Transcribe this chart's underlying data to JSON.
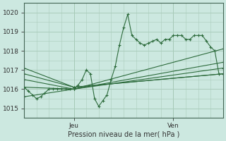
{
  "bg_color": "#cce8e0",
  "grid_color": "#aaccbb",
  "line_color": "#2d6b3c",
  "title": "Pression niveau de la mer( hPa )",
  "ylabel_ticks": [
    1015,
    1016,
    1017,
    1018,
    1019,
    1020
  ],
  "ylim": [
    1014.6,
    1020.4
  ],
  "xlim": [
    0,
    48
  ],
  "xtick_positions": [
    12,
    36
  ],
  "xtick_labels": [
    "Jeu",
    "Ven"
  ],
  "series0_x": [
    0,
    1,
    2,
    3,
    4,
    5,
    6,
    7,
    8,
    9,
    10,
    11,
    12,
    13,
    14,
    15,
    16,
    17,
    18,
    19,
    20,
    21,
    22,
    23,
    24,
    25,
    26,
    27,
    28,
    29,
    30,
    31,
    32,
    33,
    34,
    35,
    36,
    37,
    38,
    39,
    40,
    41,
    42,
    43,
    44,
    45,
    46,
    47
  ],
  "series0_y": [
    1016.1,
    1015.9,
    1015.7,
    1015.5,
    1015.6,
    1015.8,
    1016.0,
    1016.0,
    1016.0,
    1016.0,
    1016.0,
    1016.0,
    1016.0,
    1016.2,
    1016.5,
    1017.0,
    1016.8,
    1015.5,
    1015.1,
    1015.4,
    1015.7,
    1016.5,
    1017.2,
    1018.3,
    1019.2,
    1019.9,
    1018.8,
    1018.6,
    1018.4,
    1018.3,
    1018.4,
    1018.5,
    1018.6,
    1018.4,
    1018.6,
    1018.6,
    1018.8,
    1018.8,
    1018.8,
    1018.6,
    1018.6,
    1018.8,
    1018.8,
    1018.8,
    1018.5,
    1018.2,
    1018.0,
    1016.8
  ],
  "straight_lines": [
    {
      "x": [
        0,
        12,
        48
      ],
      "y": [
        1016.5,
        1016.0,
        1017.1
      ]
    },
    {
      "x": [
        0,
        12,
        48
      ],
      "y": [
        1016.1,
        1016.0,
        1018.1
      ]
    },
    {
      "x": [
        0,
        12,
        48
      ],
      "y": [
        1015.6,
        1016.0,
        1017.4
      ]
    },
    {
      "x": [
        0,
        12,
        48
      ],
      "y": [
        1016.8,
        1016.1,
        1016.8
      ]
    },
    {
      "x": [
        0,
        12,
        48
      ],
      "y": [
        1017.1,
        1016.1,
        1016.8
      ]
    }
  ]
}
